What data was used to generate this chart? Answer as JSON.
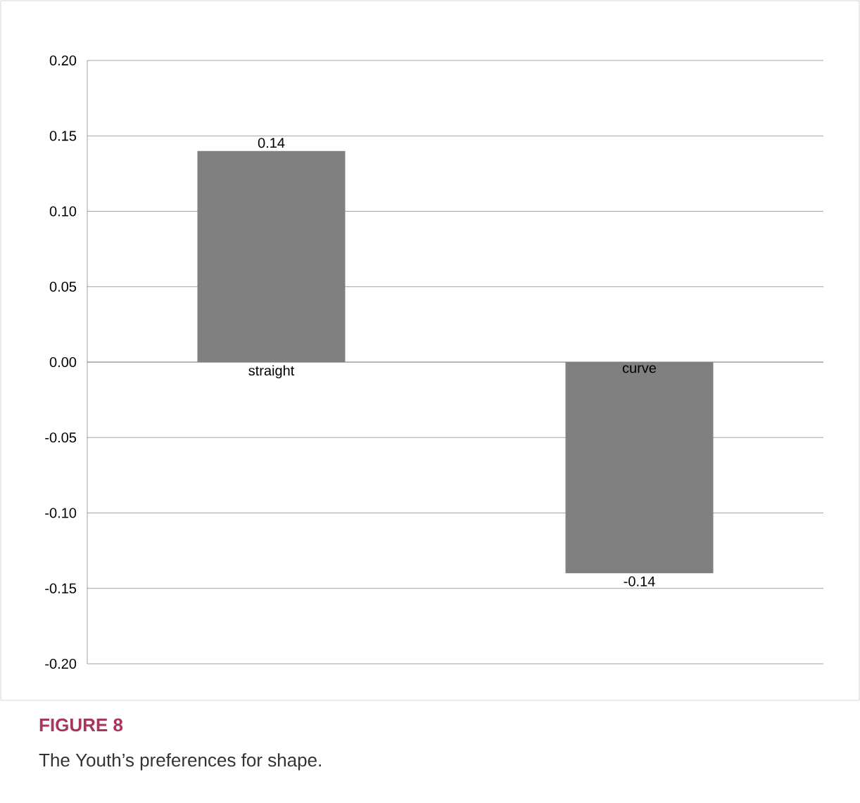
{
  "chart_data": {
    "type": "bar",
    "categories": [
      "straight",
      "curve"
    ],
    "values": [
      0.14,
      -0.14
    ],
    "color": "#808080",
    "data_labels": true,
    "ylim": [
      -0.2,
      0.2
    ],
    "yticks": [
      {
        "value": -0.2,
        "label": "-0.20"
      },
      {
        "value": -0.15,
        "label": "-0.15"
      },
      {
        "value": -0.1,
        "label": "-0.10"
      },
      {
        "value": -0.05,
        "label": "-0.05"
      },
      {
        "value": 0,
        "label": "0.00"
      },
      {
        "value": 0.05,
        "label": "0.05"
      },
      {
        "value": 0.1,
        "label": "0.10"
      },
      {
        "value": 0.15,
        "label": "0.15"
      },
      {
        "value": 0.2,
        "label": "0.20"
      }
    ],
    "grid": "y",
    "annotations": [
      "FIGURE 8",
      "The Youth’s preferences for shape."
    ]
  }
}
